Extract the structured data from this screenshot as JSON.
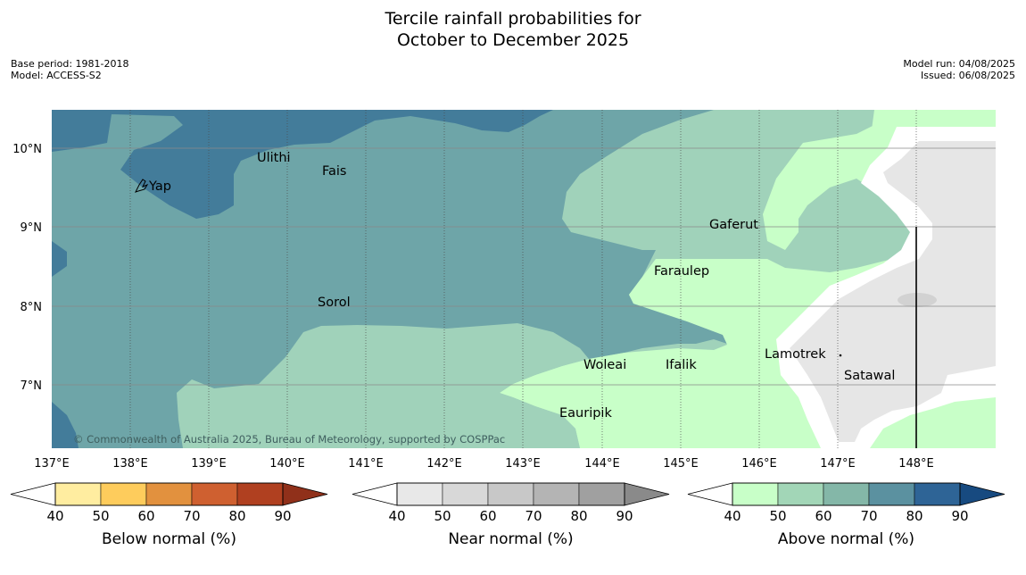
{
  "title_line1": "Tercile rainfall probabilities for",
  "title_line2": "October to December 2025",
  "meta": {
    "base_period": "Base period: 1981-2018",
    "model": "Model: ACCESS-S2",
    "model_run": "Model run: 04/08/2025",
    "issued": "Issued: 06/08/2025"
  },
  "map": {
    "x_ticks": [
      "137°E",
      "138°E",
      "139°E",
      "140°E",
      "141°E",
      "142°E",
      "143°E",
      "144°E",
      "145°E",
      "146°E",
      "147°E",
      "148°E"
    ],
    "y_ticks": [
      "10°N",
      "9°N",
      "8°N",
      "7°N"
    ],
    "places": [
      "Yap",
      "Ulithi",
      "Fais",
      "Gaferut",
      "Faraulep",
      "Sorol",
      "Woleai",
      "Ifalik",
      "Lamotrek",
      "Satawal",
      "Eauripik"
    ],
    "copyright": "© Commonwealth of Australia 2025, Bureau of Meteorology, supported by COSPPac"
  },
  "legends": [
    {
      "label": "Below normal (%)",
      "ticks": [
        "40",
        "50",
        "60",
        "70",
        "80",
        "90"
      ],
      "colors": [
        "#ffffff",
        "#ffeda0",
        "#fecc5c",
        "#e2913e",
        "#cf6030",
        "#b04020",
        "#90301a"
      ]
    },
    {
      "label": "Near normal (%)",
      "ticks": [
        "40",
        "50",
        "60",
        "70",
        "80",
        "90"
      ],
      "colors": [
        "#ffffff",
        "#e8e8e8",
        "#d8d8d8",
        "#c8c8c8",
        "#b4b4b4",
        "#a0a0a0",
        "#8a8a8a"
      ]
    },
    {
      "label": "Above normal (%)",
      "ticks": [
        "40",
        "50",
        "60",
        "70",
        "80",
        "90"
      ],
      "colors": [
        "#ffffff",
        "#c8ffc8",
        "#a2d6b7",
        "#84b7a8",
        "#5b91a0",
        "#2e6496",
        "#174a80"
      ]
    }
  ]
}
